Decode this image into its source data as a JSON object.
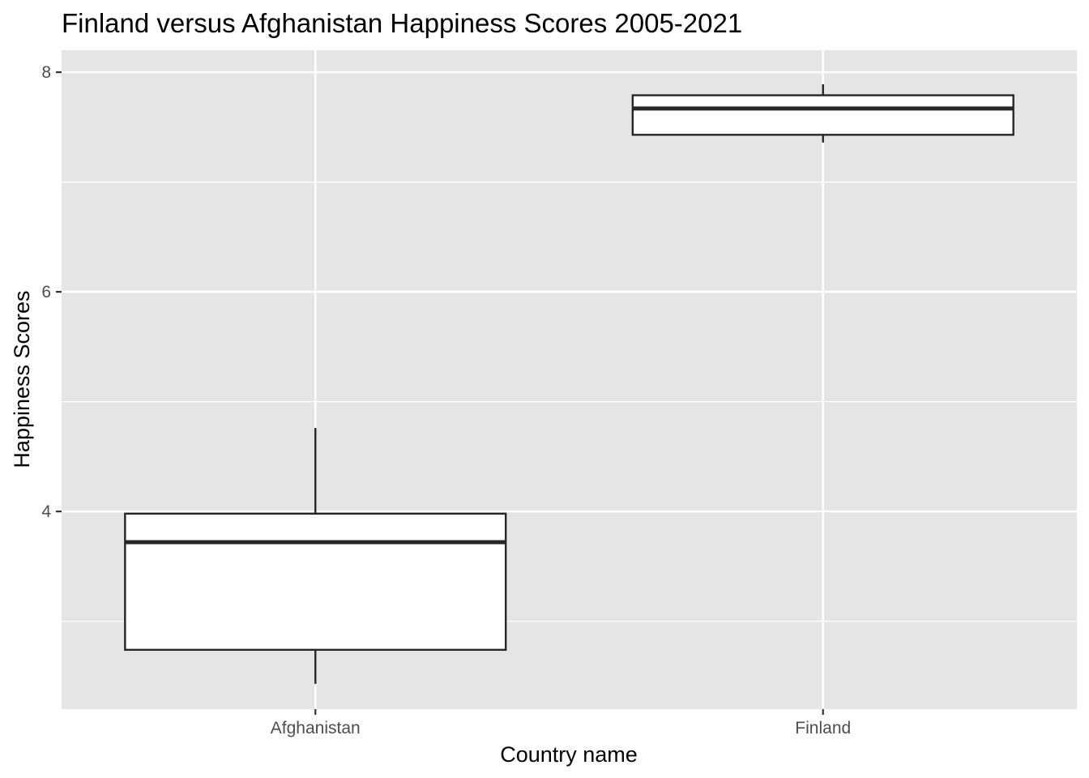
{
  "chart_data": {
    "type": "boxplot",
    "title": "Finland versus Afghanistan Happiness Scores 2005-2021",
    "xlabel": "Country name",
    "ylabel": "Happiness Scores",
    "ylim": [
      2.2,
      8.2
    ],
    "y_ticks": [
      4,
      6,
      8
    ],
    "y_minor_ticks": [
      3,
      5,
      7
    ],
    "grid": true,
    "categories": [
      "Afghanistan",
      "Finland"
    ],
    "boxes": [
      {
        "category": "Afghanistan",
        "min": 2.43,
        "q1": 2.74,
        "median": 3.72,
        "q3": 3.98,
        "max": 4.76
      },
      {
        "category": "Finland",
        "min": 7.36,
        "q1": 7.43,
        "median": 7.67,
        "q3": 7.79,
        "max": 7.89
      }
    ],
    "colors": {
      "panel": "#e5e5e5",
      "grid": "#ffffff",
      "box_fill": "#ffffff",
      "box_line": "#262626",
      "tick": "#333333"
    }
  }
}
